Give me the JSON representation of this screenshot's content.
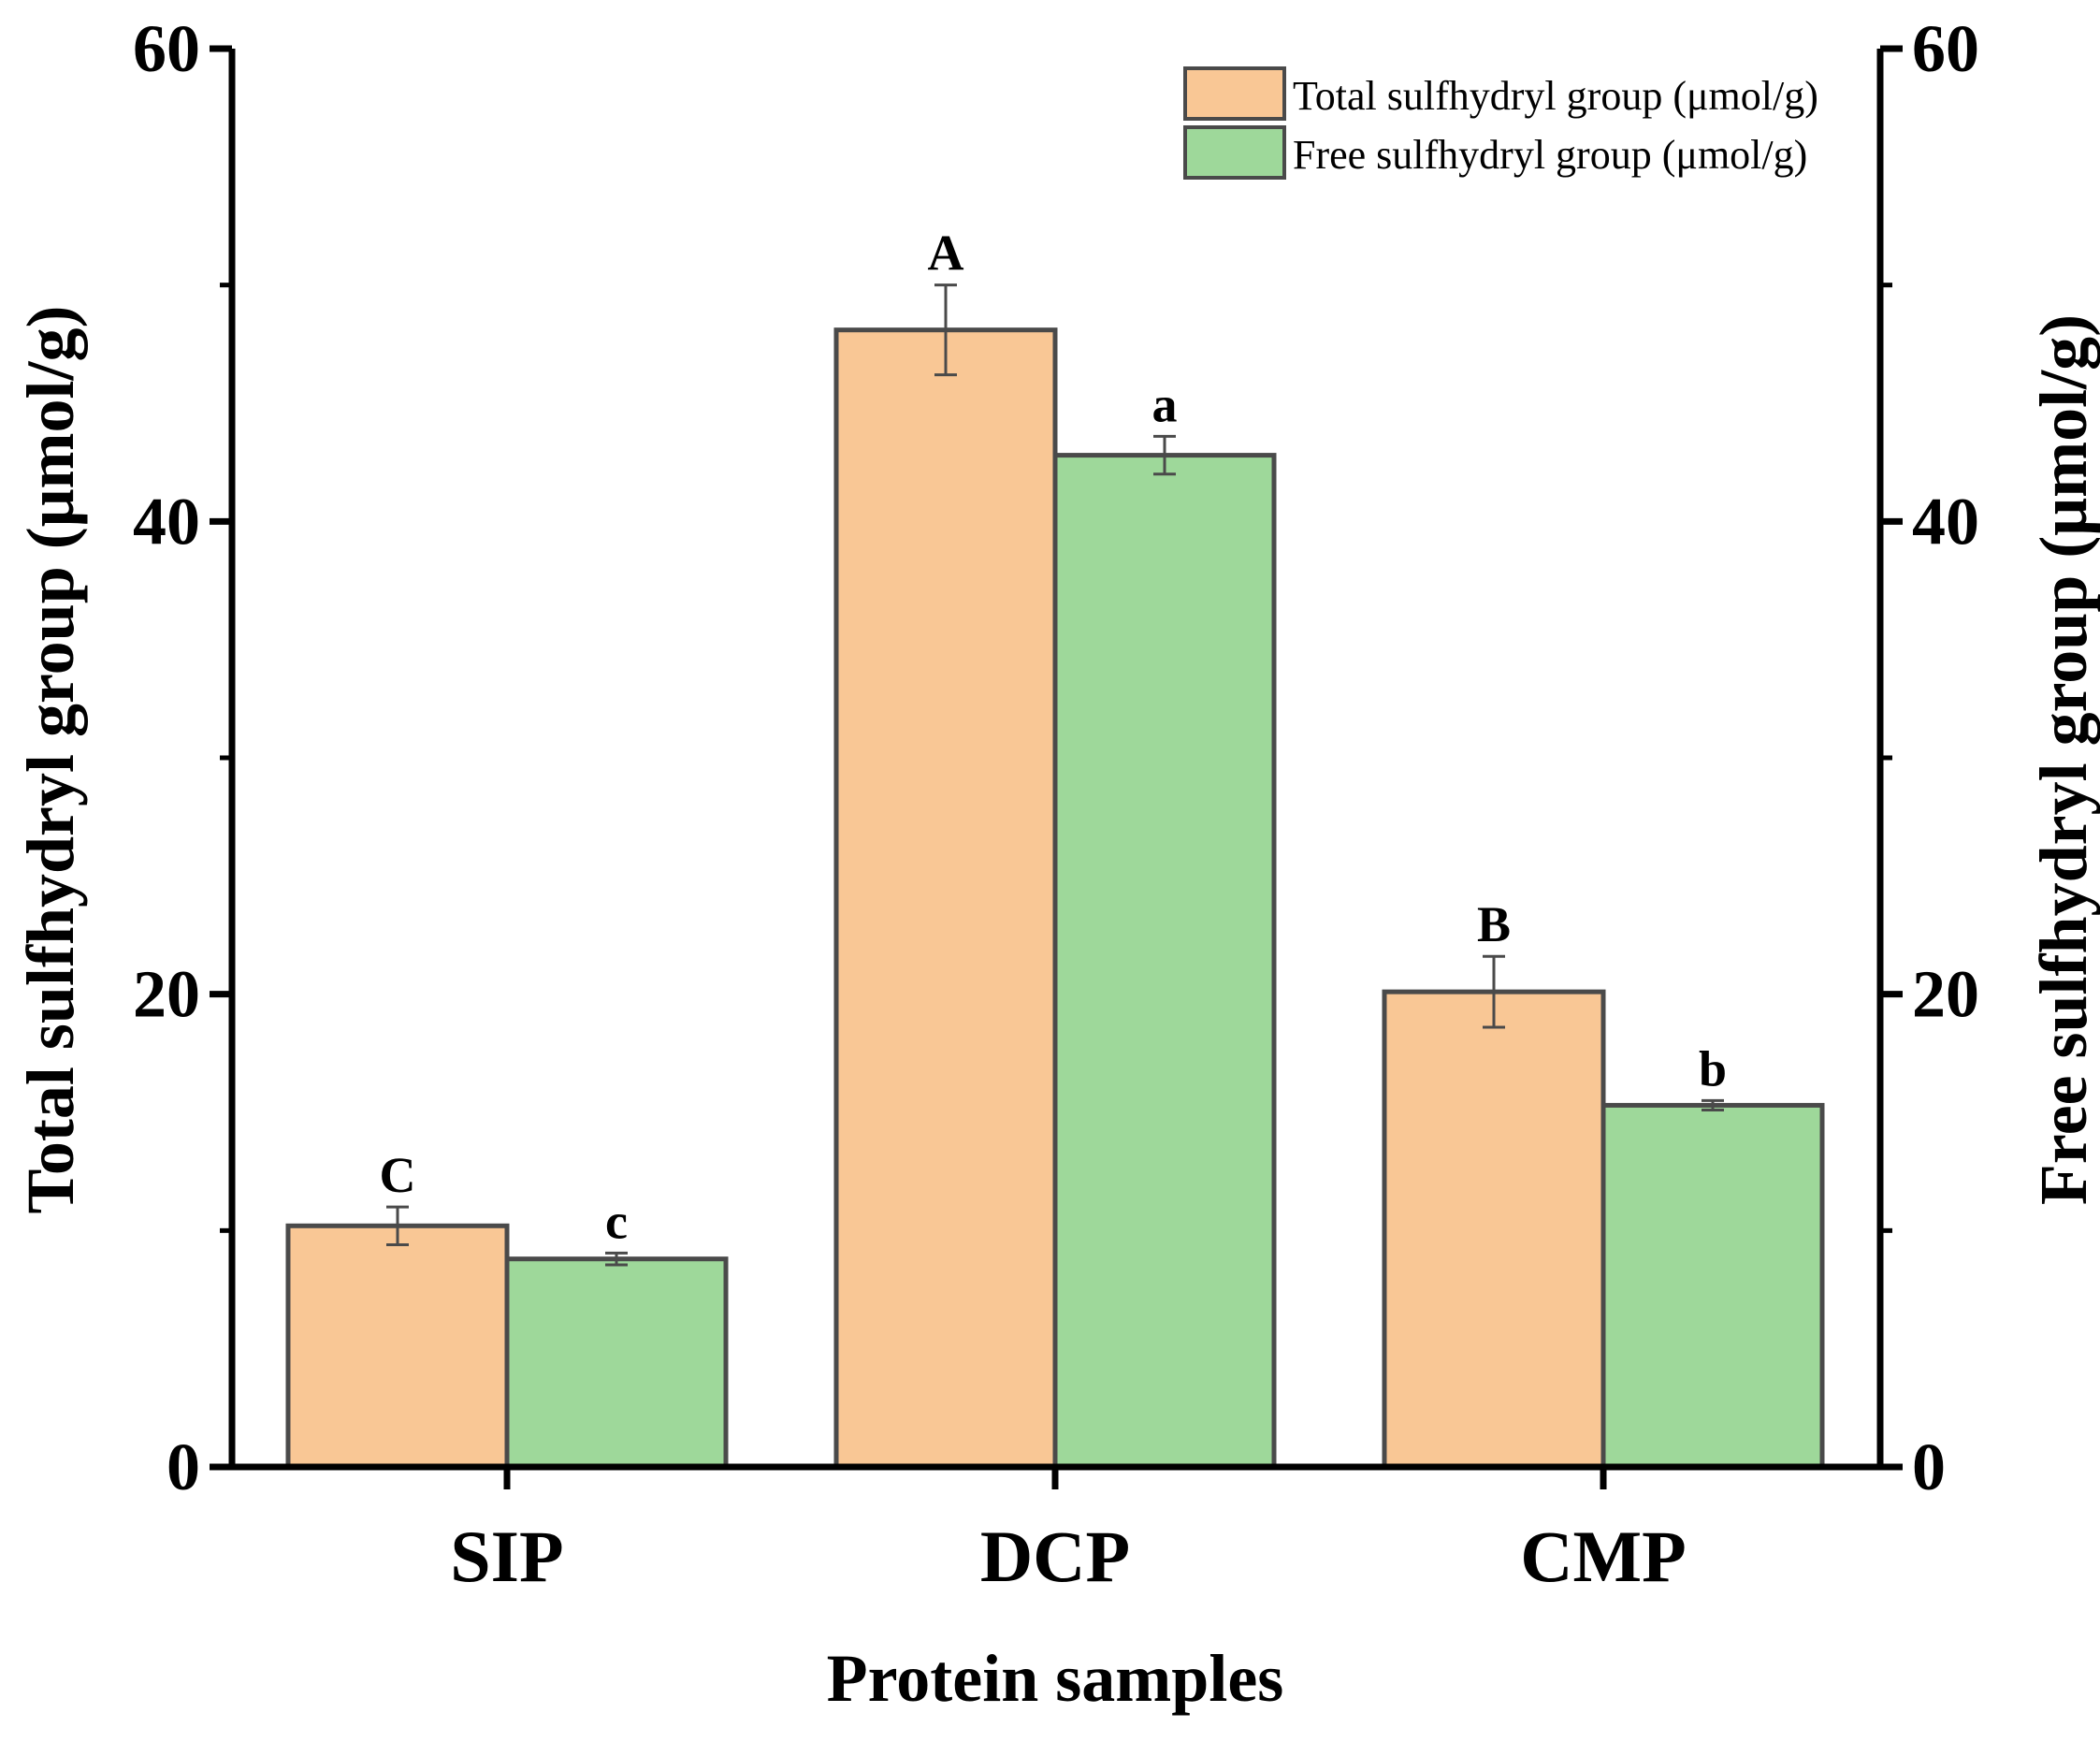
{
  "chart_data": {
    "type": "bar",
    "xlabel": "Protein samples",
    "ylabel_left": "Total sulfhydryl group (μmol/g)",
    "ylabel_right": "Free sulfhydryl group (μmol/g)",
    "ylim": [
      0,
      60
    ],
    "yticks": [
      "0",
      "20",
      "40",
      "60"
    ],
    "categories": [
      "SIP",
      "DCP",
      "CMP"
    ],
    "legend_position": "top-right",
    "series": [
      {
        "name": "Total sulfhydryl group (μmol/g)",
        "axis": "left",
        "color": "#F9C795",
        "values": [
          10.2,
          48.1,
          20.1
        ],
        "errors": [
          0.8,
          1.9,
          1.5
        ],
        "significance": [
          "C",
          "A",
          "B"
        ]
      },
      {
        "name": "Free sulfhydryl group (μmol/g)",
        "axis": "right",
        "color": "#9ED89A",
        "values": [
          8.8,
          42.8,
          15.3
        ],
        "errors": [
          0.25,
          0.8,
          0.2
        ],
        "significance": [
          "c",
          "a",
          "b"
        ]
      }
    ]
  }
}
